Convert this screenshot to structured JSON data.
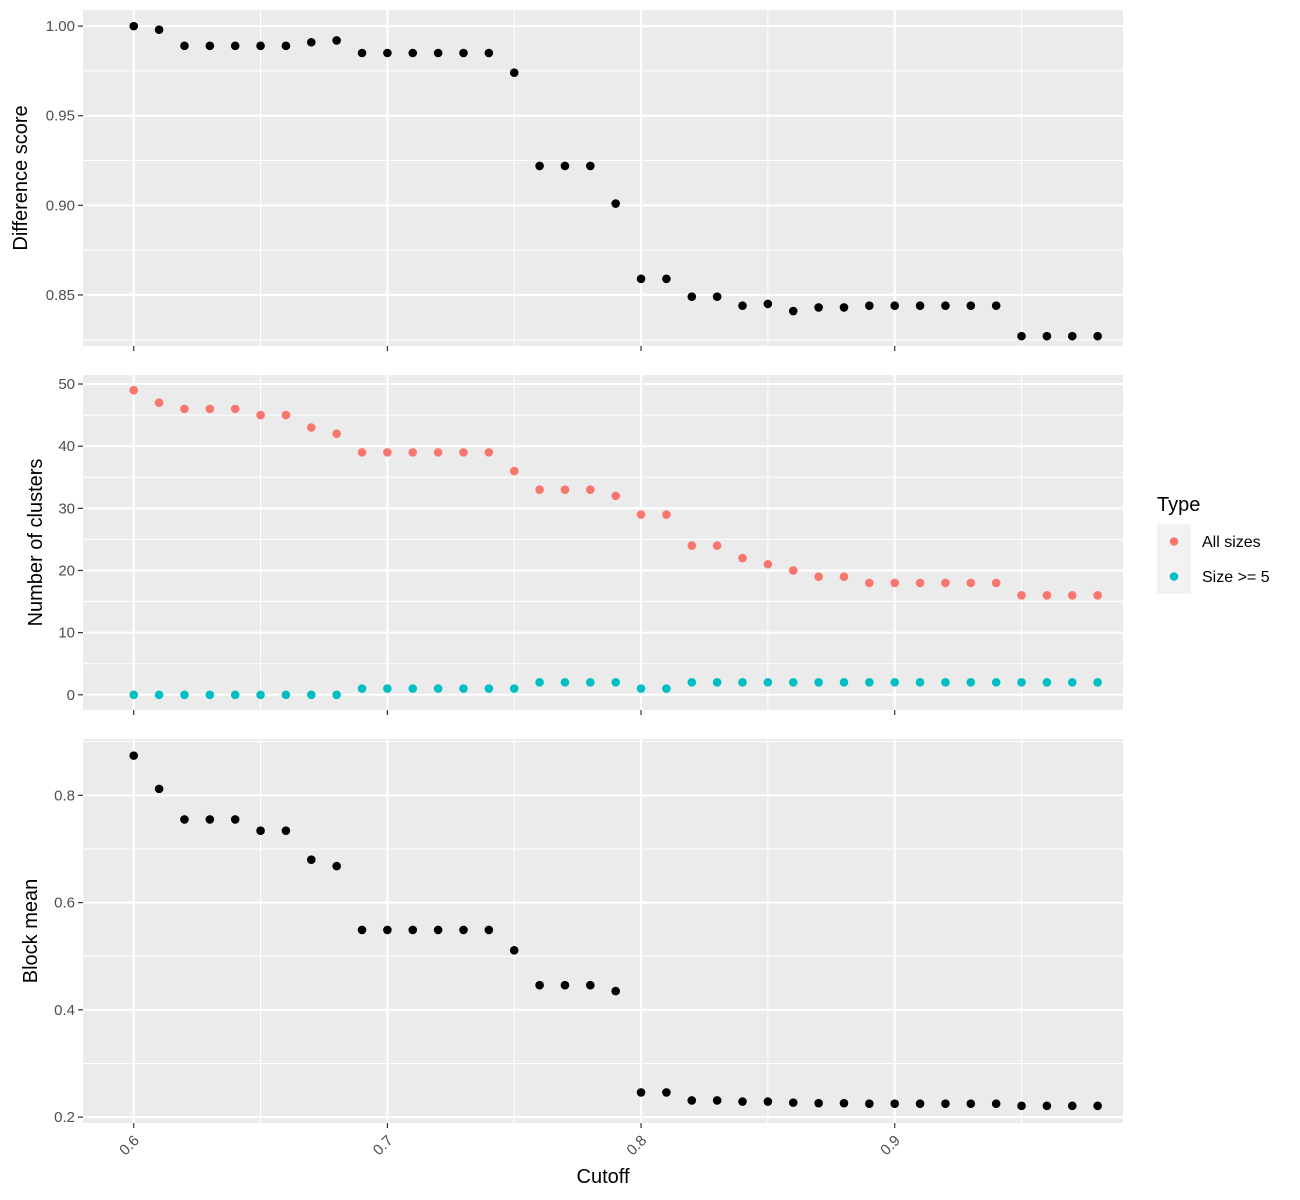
{
  "chart_data": [
    {
      "type": "scatter",
      "ylabel": "Difference score",
      "xlabel": "",
      "xlim": [
        0.58,
        0.99
      ],
      "ylim": [
        0.8215,
        1.009
      ],
      "y_ticks": [
        0.85,
        0.9,
        0.95,
        1.0
      ],
      "y_tick_labels": [
        "0.85",
        "0.90",
        "0.95",
        "1.00"
      ],
      "grid": true,
      "series": [
        {
          "color": "#000000",
          "x": [
            0.6,
            0.61,
            0.62,
            0.63,
            0.64,
            0.65,
            0.66,
            0.67,
            0.68,
            0.69,
            0.7,
            0.71,
            0.72,
            0.73,
            0.74,
            0.75,
            0.76,
            0.77,
            0.78,
            0.79,
            0.8,
            0.81,
            0.82,
            0.83,
            0.84,
            0.85,
            0.86,
            0.87,
            0.88,
            0.89,
            0.9,
            0.91,
            0.92,
            0.93,
            0.94,
            0.95,
            0.96,
            0.97,
            0.98
          ],
          "y": [
            1.0,
            0.998,
            0.989,
            0.989,
            0.989,
            0.989,
            0.989,
            0.991,
            0.992,
            0.985,
            0.985,
            0.985,
            0.985,
            0.985,
            0.985,
            0.974,
            0.922,
            0.922,
            0.922,
            0.901,
            0.859,
            0.859,
            0.849,
            0.849,
            0.844,
            0.845,
            0.841,
            0.843,
            0.843,
            0.844,
            0.844,
            0.844,
            0.844,
            0.844,
            0.844,
            0.827,
            0.827,
            0.827,
            0.827
          ]
        }
      ]
    },
    {
      "type": "scatter",
      "ylabel": "Number of clusters",
      "xlabel": "",
      "xlim": [
        0.58,
        0.99
      ],
      "ylim": [
        -2.45,
        51.45
      ],
      "y_ticks": [
        0,
        10,
        20,
        30,
        40,
        50
      ],
      "y_tick_labels": [
        "0",
        "10",
        "20",
        "30",
        "40",
        "50"
      ],
      "grid": true,
      "series": [
        {
          "name": "All sizes",
          "color": "#f8766d",
          "x": [
            0.6,
            0.61,
            0.62,
            0.63,
            0.64,
            0.65,
            0.66,
            0.67,
            0.68,
            0.69,
            0.7,
            0.71,
            0.72,
            0.73,
            0.74,
            0.75,
            0.76,
            0.77,
            0.78,
            0.79,
            0.8,
            0.81,
            0.82,
            0.83,
            0.84,
            0.85,
            0.86,
            0.87,
            0.88,
            0.89,
            0.9,
            0.91,
            0.92,
            0.93,
            0.94,
            0.95,
            0.96,
            0.97,
            0.98
          ],
          "y": [
            49,
            47,
            46,
            46,
            46,
            45,
            45,
            43,
            42,
            39,
            39,
            39,
            39,
            39,
            39,
            36,
            33,
            33,
            33,
            32,
            29,
            29,
            24,
            24,
            22,
            21,
            20,
            19,
            19,
            18,
            18,
            18,
            18,
            18,
            18,
            16,
            16,
            16,
            16
          ]
        },
        {
          "name": "Size >= 5",
          "color": "#00bfc4",
          "x": [
            0.6,
            0.61,
            0.62,
            0.63,
            0.64,
            0.65,
            0.66,
            0.67,
            0.68,
            0.69,
            0.7,
            0.71,
            0.72,
            0.73,
            0.74,
            0.75,
            0.76,
            0.77,
            0.78,
            0.79,
            0.8,
            0.81,
            0.82,
            0.83,
            0.84,
            0.85,
            0.86,
            0.87,
            0.88,
            0.89,
            0.9,
            0.91,
            0.92,
            0.93,
            0.94,
            0.95,
            0.96,
            0.97,
            0.98
          ],
          "y": [
            0,
            0,
            0,
            0,
            0,
            0,
            0,
            0,
            0,
            1,
            1,
            1,
            1,
            1,
            1,
            1,
            2,
            2,
            2,
            2,
            1,
            1,
            2,
            2,
            2,
            2,
            2,
            2,
            2,
            2,
            2,
            2,
            2,
            2,
            2,
            2,
            2,
            2,
            2
          ]
        }
      ]
    },
    {
      "type": "scatter",
      "ylabel": "Block mean",
      "xlabel": "Cutoff",
      "xlim": [
        0.58,
        0.99
      ],
      "ylim": [
        0.189,
        0.905
      ],
      "x_ticks": [
        0.6,
        0.7,
        0.8,
        0.9
      ],
      "x_tick_labels": [
        "0.6",
        "0.7",
        "0.8",
        "0.9"
      ],
      "y_ticks": [
        0.2,
        0.4,
        0.6,
        0.8
      ],
      "y_tick_labels": [
        "0.2",
        "0.4",
        "0.6",
        "0.8"
      ],
      "grid": true,
      "series": [
        {
          "color": "#000000",
          "x": [
            0.6,
            0.61,
            0.62,
            0.63,
            0.64,
            0.65,
            0.66,
            0.67,
            0.68,
            0.69,
            0.7,
            0.71,
            0.72,
            0.73,
            0.74,
            0.75,
            0.76,
            0.77,
            0.78,
            0.79,
            0.8,
            0.81,
            0.82,
            0.83,
            0.84,
            0.85,
            0.86,
            0.87,
            0.88,
            0.89,
            0.9,
            0.91,
            0.92,
            0.93,
            0.94,
            0.95,
            0.96,
            0.97,
            0.98
          ],
          "y": [
            0.874,
            0.812,
            0.755,
            0.755,
            0.755,
            0.734,
            0.734,
            0.68,
            0.668,
            0.549,
            0.549,
            0.549,
            0.549,
            0.549,
            0.549,
            0.511,
            0.446,
            0.446,
            0.446,
            0.435,
            0.246,
            0.246,
            0.231,
            0.231,
            0.229,
            0.229,
            0.227,
            0.226,
            0.226,
            0.225,
            0.225,
            0.225,
            0.225,
            0.225,
            0.225,
            0.221,
            0.221,
            0.221,
            0.221
          ]
        }
      ]
    }
  ],
  "legend": {
    "title": "Type",
    "position": "right",
    "entries": [
      {
        "label": "All sizes",
        "color": "#f8766d"
      },
      {
        "label": "Size >= 5",
        "color": "#00bfc4"
      }
    ]
  },
  "style": {
    "panel_background": "#ebebeb",
    "grid_color": "#ffffff",
    "tick_color": "#333333",
    "legend_key_background": "#f2f2f2"
  }
}
